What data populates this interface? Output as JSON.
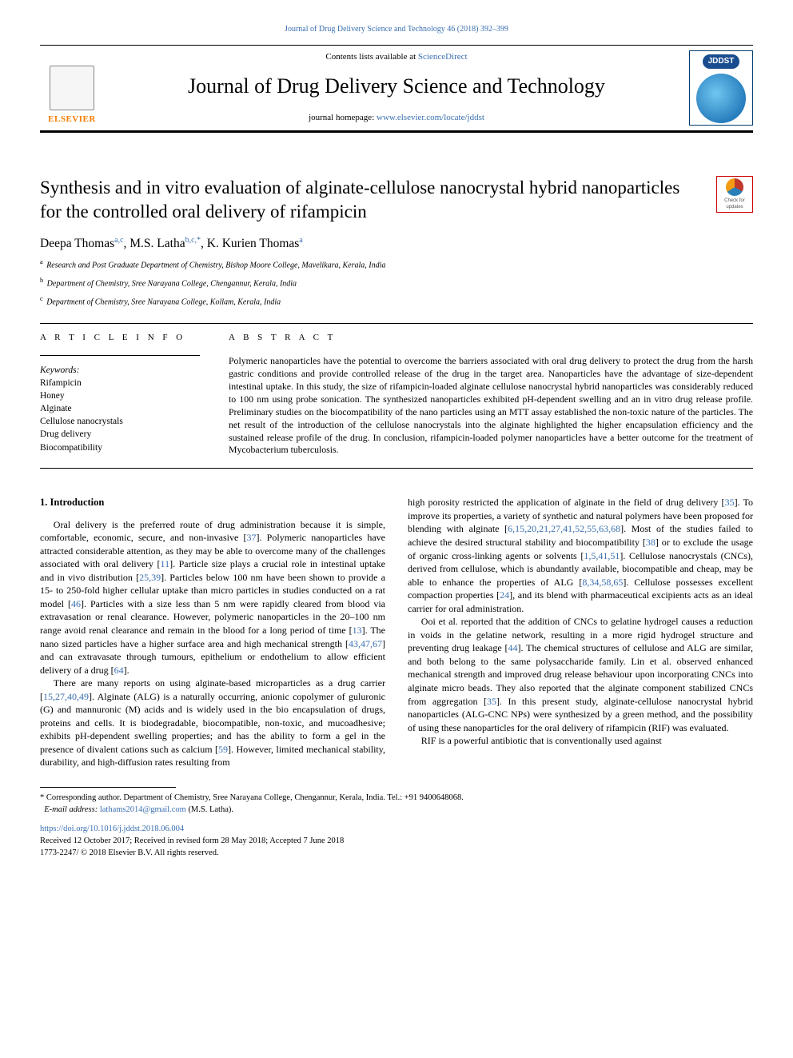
{
  "top_journal_link": "Journal of Drug Delivery Science and Technology 46 (2018) 392–399",
  "header": {
    "contents_prefix": "Contents lists available at ",
    "contents_link": "ScienceDirect",
    "journal_name": "Journal of Drug Delivery Science and Technology",
    "homepage_prefix": "journal homepage: ",
    "homepage_link": "www.elsevier.com/locate/jddst",
    "elsevier_label": "ELSEVIER",
    "jddst_label": "JDDST"
  },
  "check_updates": "Check for updates",
  "title": "Synthesis and in vitro evaluation of alginate-cellulose nanocrystal hybrid nanoparticles for the controlled oral delivery of rifampicin",
  "authors_html": "Deepa Thomas<sup>a,c</sup>, M.S. Latha<sup>b,c,*</sup>, K. Kurien Thomas<sup>a</sup>",
  "affiliations": [
    {
      "sup": "a",
      "text": "Research and Post Graduate Department of Chemistry, Bishop Moore College, Mavelikara, Kerala, India"
    },
    {
      "sup": "b",
      "text": "Department of Chemistry, Sree Narayana College, Chengannur, Kerala, India"
    },
    {
      "sup": "c",
      "text": "Department of Chemistry, Sree Narayana College, Kollam, Kerala, India"
    }
  ],
  "article_info_head": "A R T I C L E  I N F O",
  "abstract_head": "A B S T R A C T",
  "keywords_label": "Keywords:",
  "keywords": [
    "Rifampicin",
    "Honey",
    "Alginate",
    "Cellulose nanocrystals",
    "Drug delivery",
    "Biocompatibility"
  ],
  "abstract": "Polymeric nanoparticles have the potential to overcome the barriers associated with oral drug delivery to protect the drug from the harsh gastric conditions and provide controlled release of the drug in the target area. Nanoparticles have the advantage of size-dependent intestinal uptake. In this study, the size of rifampicin-loaded alginate cellulose nanocrystal hybrid nanoparticles was considerably reduced to 100 nm using probe sonication. The synthesized nanoparticles exhibited pH-dependent swelling and an in vitro drug release profile. Preliminary studies on the biocompatibility of the nano particles using an MTT assay established the non-toxic nature of the particles. The net result of the introduction of the cellulose nanocrystals into the alginate highlighted the higher encapsulation efficiency and the sustained release profile of the drug. In conclusion, rifampicin-loaded polymer nanoparticles have a better outcome for the treatment of Mycobacterium tuberculosis.",
  "intro_head": "1. Introduction",
  "paragraphs": {
    "p1a": "Oral delivery is the preferred route of drug administration because it is simple, comfortable, economic, secure, and non-invasive [",
    "p1b": "]. Polymeric nanoparticles have attracted considerable attention, as they may be able to overcome many of the challenges associated with oral delivery [",
    "p1c": "]. Particle size plays a crucial role in intestinal uptake and in vivo distribution [",
    "p1d": "]. Particles below 100 nm have been shown to provide a 15- to 250-fold higher cellular uptake than micro particles in studies conducted on a rat model [",
    "p1e": "]. Particles with a size less than 5 nm were rapidly cleared from blood via extravasation or renal clearance. However, polymeric nanoparticles in the 20–100 nm range avoid renal clearance and remain in the blood for a long period of time [",
    "p1f": "]. The nano sized particles have a higher surface area and high mechanical strength [",
    "p1g": "] and can extravasate through tumours, epithelium or endothelium to allow efficient delivery of a drug [",
    "p1h": "].",
    "c37": "37",
    "c11": "11",
    "c25_39": "25,39",
    "c46": "46",
    "c13": "13",
    "c43_47_67": "43,47,67",
    "c64": "64",
    "p2a": "There are many reports on using alginate-based microparticles as a drug carrier [",
    "p2b": "]. Alginate (ALG) is a naturally occurring, anionic copolymer of guluronic (G) and mannuronic (M) acids and is widely used in the bio encapsulation of drugs, proteins and cells. It is biodegradable, biocompatible, non-toxic, and mucoadhesive; exhibits pH-dependent swelling properties; and has the ability to form a gel in the presence of divalent cations such as calcium [",
    "p2c": "]. However, limited mechanical stability, durability, and high-diffusion rates resulting from",
    "c15_27_40_49": "15,27,40,49",
    "c59": "59",
    "p3a": "high porosity restricted the application of alginate in the field of drug delivery [",
    "p3b": "]. To improve its properties, a variety of synthetic and natural polymers have been proposed for blending with alginate [",
    "p3c": "]. Most of the studies failed to achieve the desired structural stability and biocompatibility [",
    "p3d": "] or to exclude the usage of organic cross-linking agents or solvents [",
    "p3e": "]. Cellulose nanocrystals (CNCs), derived from cellulose, which is abundantly available, biocompatible and cheap, may be able to enhance the properties of ALG [",
    "p3f": "]. Cellulose possesses excellent compaction properties [",
    "p3g": "], and its blend with pharmaceutical excipients acts as an ideal carrier for oral administration.",
    "c35": "35",
    "cblend": "6,15,20,21,27,41,52,55,63,68",
    "c38": "38",
    "c1_5_41_51": "1,5,41,51",
    "c8_34_58_65": "8,34,58,65",
    "c24": "24",
    "p4a": "Ooi et al. reported that the addition of CNCs to gelatine hydrogel causes a reduction in voids in the gelatine network, resulting in a more rigid hydrogel structure and preventing drug leakage [",
    "p4b": "]. The chemical structures of cellulose and ALG are similar, and both belong to the same polysaccharide family. Lin et al. observed enhanced mechanical strength and improved drug release behaviour upon incorporating CNCs into alginate micro beads. They also reported that the alginate component stabilized CNCs from aggregation [",
    "p4c": "]. In this present study, alginate-cellulose nanocrystal hybrid nanoparticles (ALG-CNC NPs) were synthesized by a green method, and the possibility of using these nanoparticles for the oral delivery of rifampicin (RIF) was evaluated.",
    "c44": "44",
    "c35b": "35",
    "p5": "RIF is a powerful antibiotic that is conventionally used against"
  },
  "footer": {
    "corr_label": "* Corresponding author. Department of Chemistry, Sree Narayana College, Chengannur, Kerala, India. Tel.: +91 9400648068.",
    "email_label": "E-mail address: ",
    "email": "lathams2014@gmail.com",
    "email_suffix": " (M.S. Latha).",
    "doi": "https://doi.org/10.1016/j.jddst.2018.06.004",
    "received": "Received 12 October 2017; Received in revised form 28 May 2018; Accepted 7 June 2018",
    "copyright": "1773-2247/ © 2018 Elsevier B.V. All rights reserved."
  },
  "colors": {
    "link": "#3a6fb0",
    "elsevier_orange": "#f57c00",
    "jddst_blue": "#1a4d8f"
  }
}
